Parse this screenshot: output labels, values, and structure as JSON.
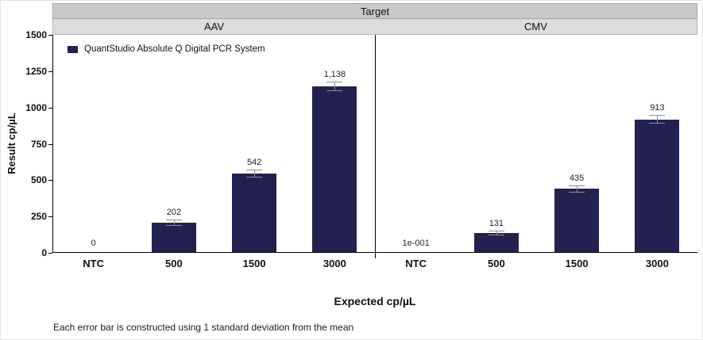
{
  "header": {
    "target": "Target",
    "panels": [
      "AAV",
      "CMV"
    ]
  },
  "legend": {
    "label": "QuantStudio Absolute Q Digital PCR System",
    "color": "#232150"
  },
  "axis": {
    "y_label": "Result cp/µL",
    "x_label": "Expected cp/µL",
    "y_ticks": [
      0,
      250,
      500,
      750,
      1000,
      1250,
      1500
    ]
  },
  "footnote": "Each error bar is constructed using 1 standard deviation from the mean",
  "chart_data": {
    "type": "bar",
    "title": "Target",
    "ylabel": "Result cp/µL",
    "xlabel": "Expected cp/µL",
    "ylim": [
      0,
      1500
    ],
    "y_ticks": [
      0,
      250,
      500,
      750,
      1000,
      1250,
      1500
    ],
    "grid": false,
    "legend": [
      "QuantStudio Absolute Q Digital PCR System"
    ],
    "legend_position": "top-left inside plot",
    "bar_color": "#232150",
    "error_note": "error bars = 1 standard deviation from the mean (estimated from pixels)",
    "panels": [
      {
        "name": "AAV",
        "categories": [
          "NTC",
          "500",
          "1500",
          "3000"
        ],
        "values": [
          0,
          202,
          542,
          1138
        ],
        "labels": [
          "0",
          "202",
          "542",
          "1,138"
        ],
        "errors": [
          0,
          20,
          28,
          33
        ]
      },
      {
        "name": "CMV",
        "categories": [
          "NTC",
          "500",
          "1500",
          "3000"
        ],
        "values": [
          0.1,
          131,
          435,
          913
        ],
        "labels": [
          "1e-001",
          "131",
          "435",
          "913"
        ],
        "errors": [
          0,
          16,
          25,
          30
        ]
      }
    ]
  }
}
